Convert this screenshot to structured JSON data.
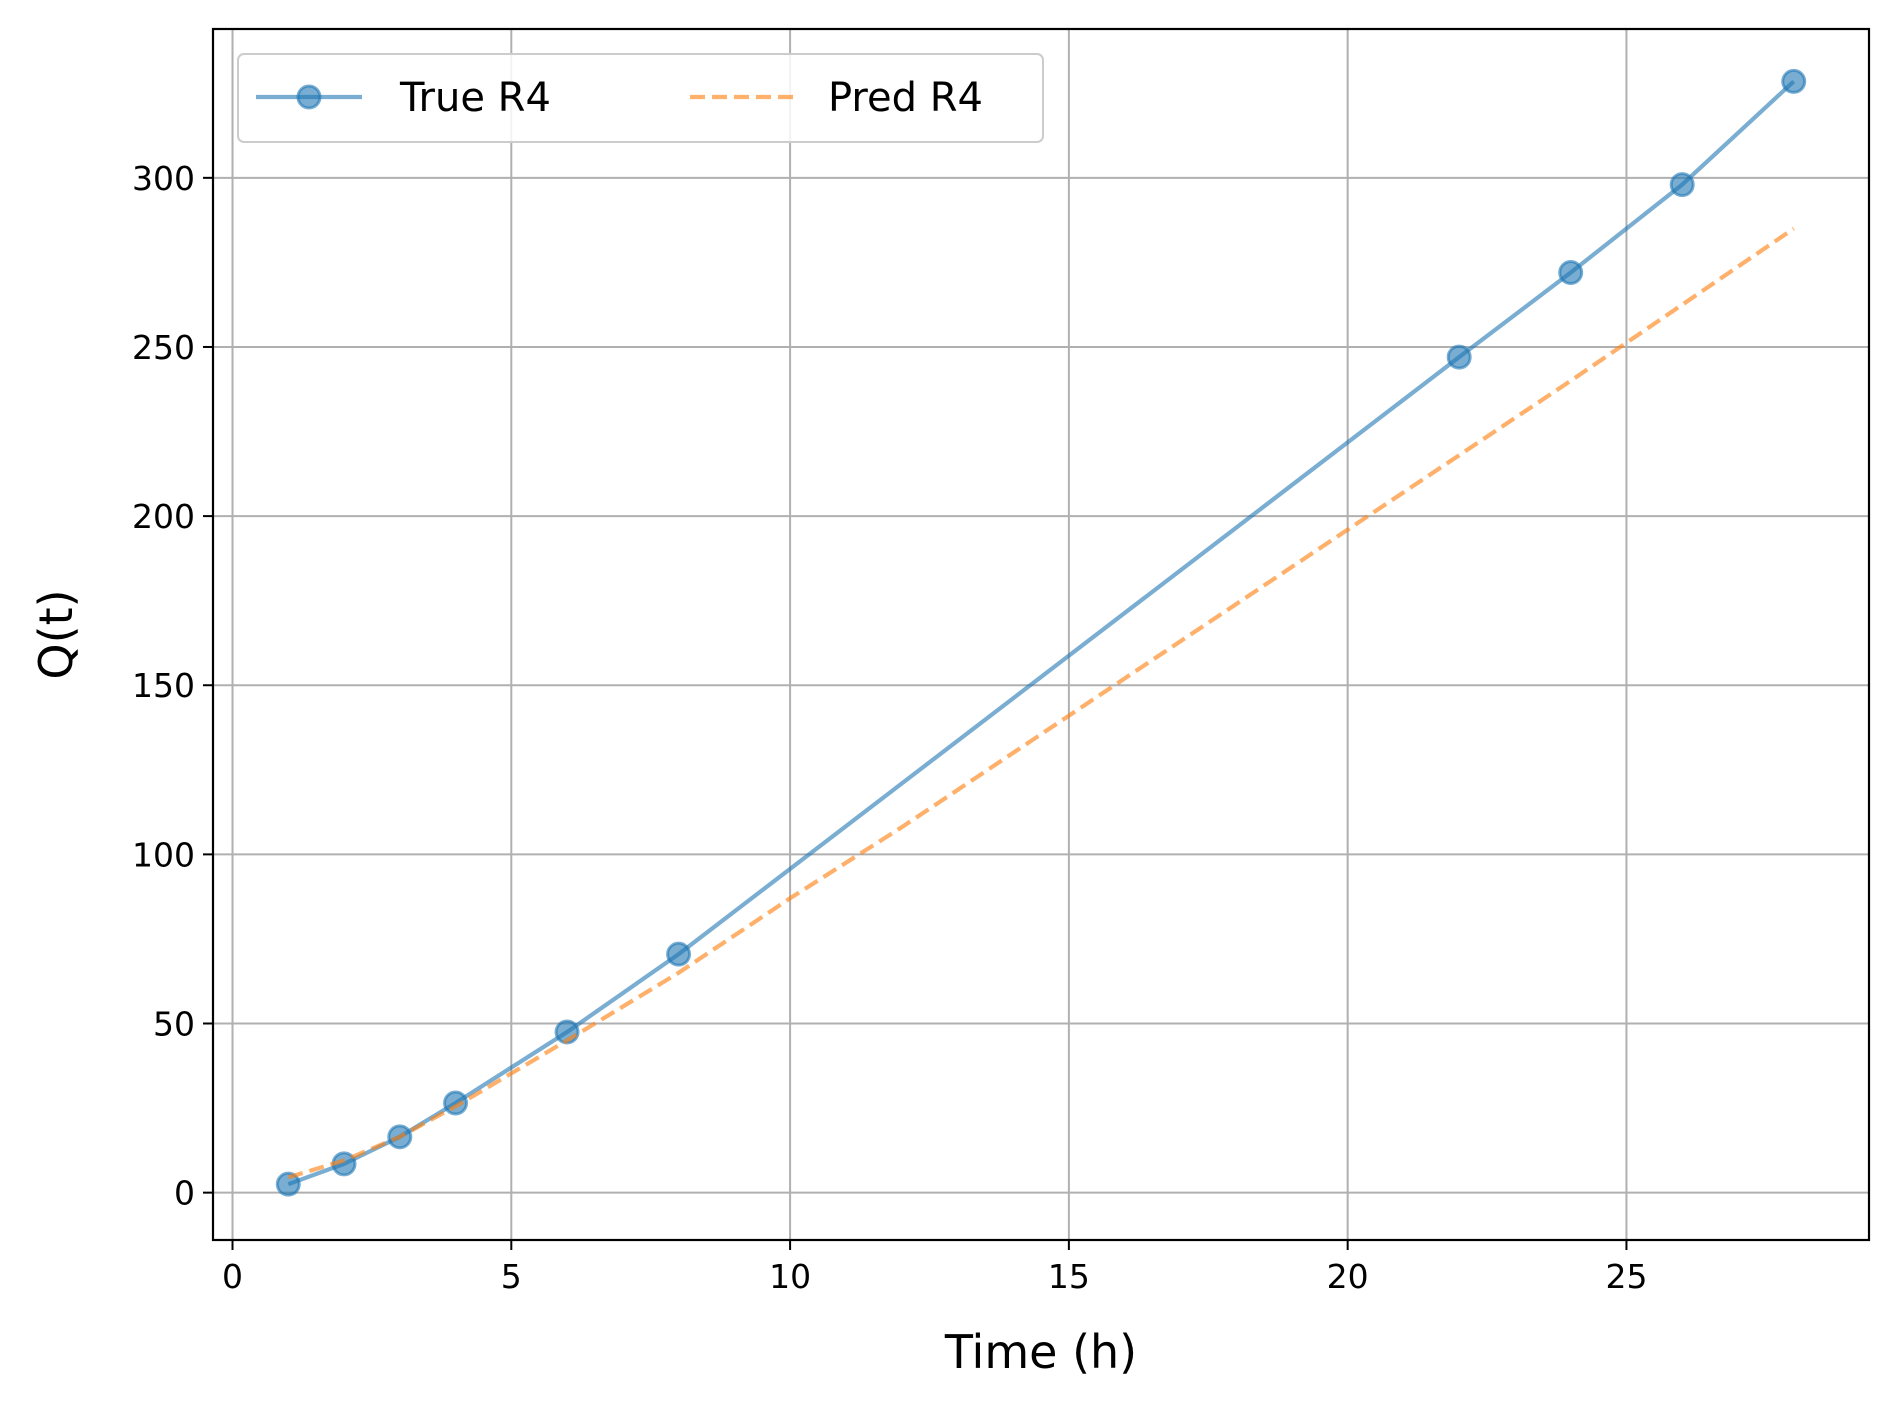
{
  "chart_data": {
    "type": "line",
    "xlabel": "Time (h)",
    "ylabel": "Q(t)",
    "xlim": [
      -0.35,
      29.35
    ],
    "ylim": [
      -14,
      344
    ],
    "xticks": [
      0,
      5,
      10,
      15,
      20,
      25
    ],
    "yticks": [
      0,
      50,
      100,
      150,
      200,
      250,
      300
    ],
    "grid": true,
    "legend": {
      "placement": "top-left",
      "columns": 2
    },
    "series": [
      {
        "name": "True R4",
        "style": "solid-line-with-circle-markers",
        "color": "#1f77b4",
        "x": [
          1,
          2,
          3,
          4,
          6,
          8,
          22,
          24,
          26,
          28
        ],
        "y": [
          2.5,
          8.5,
          16.5,
          26.5,
          47.5,
          70.5,
          247,
          272,
          298,
          328.5
        ]
      },
      {
        "name": "Pred R4",
        "style": "dashed-line",
        "color": "#ff7f0e",
        "x": [
          1,
          2,
          3,
          4,
          6,
          8,
          10,
          12,
          14,
          16,
          18,
          20,
          22,
          24,
          26,
          28
        ],
        "y": [
          4.5,
          9.5,
          16.5,
          25.5,
          45,
          65,
          87,
          108,
          130,
          152,
          174,
          196,
          218,
          240,
          262.5,
          285
        ]
      }
    ]
  }
}
